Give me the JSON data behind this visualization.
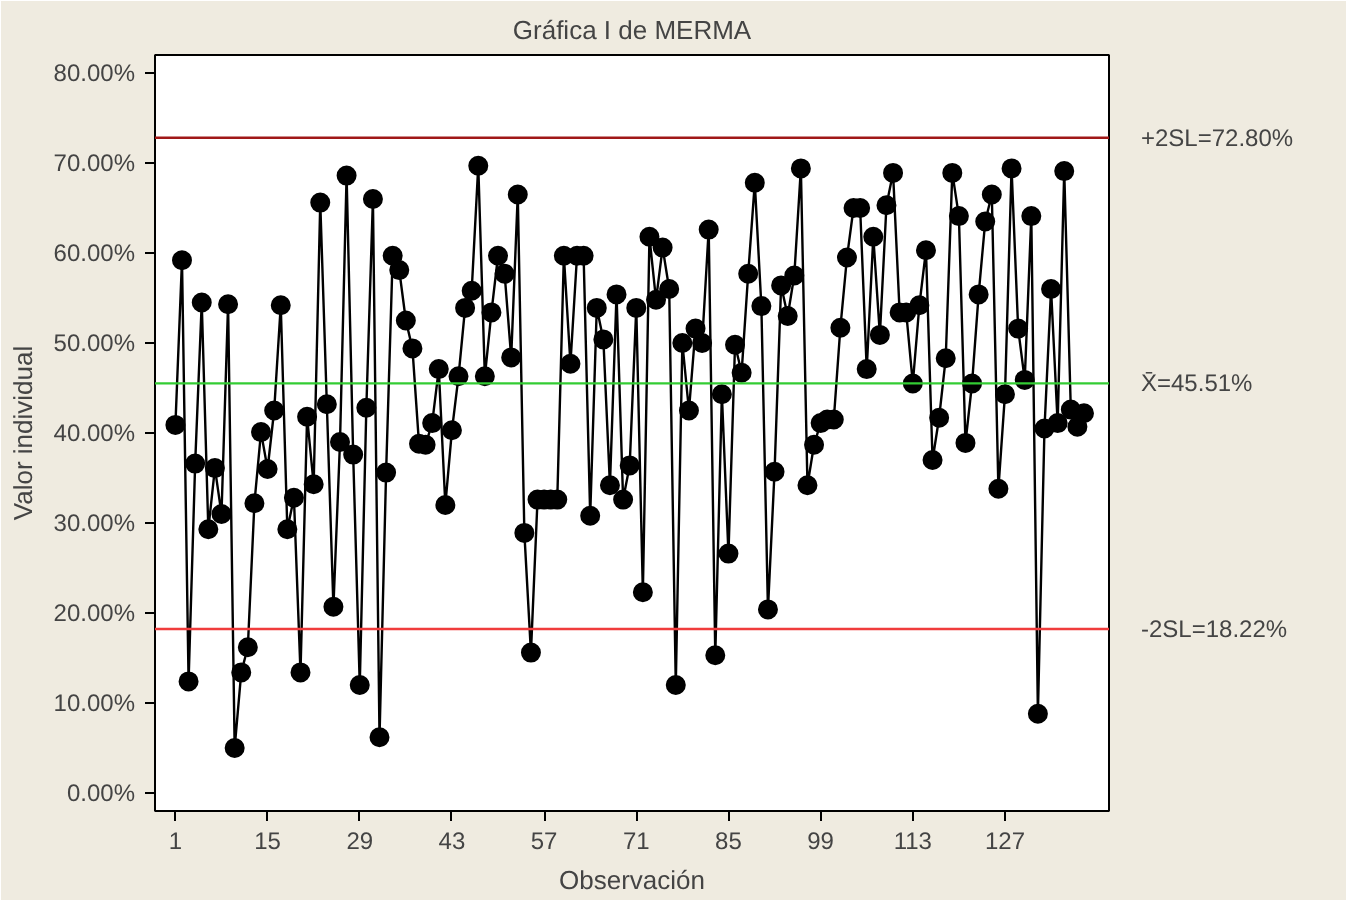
{
  "chart_data": {
    "type": "line",
    "title": "Gráfica I de MERMA",
    "xlabel": "Observación",
    "ylabel": "Valor individual",
    "x": [
      1,
      2,
      3,
      4,
      5,
      6,
      7,
      8,
      9,
      10,
      11,
      12,
      13,
      14,
      15,
      16,
      17,
      18,
      19,
      20,
      21,
      22,
      23,
      24,
      25,
      26,
      27,
      28,
      29,
      30,
      31,
      32,
      33,
      34,
      35,
      36,
      37,
      38,
      39,
      40,
      41,
      42,
      43,
      44,
      45,
      46,
      47,
      48,
      49,
      50,
      51,
      52,
      53,
      54,
      55,
      56,
      57,
      58,
      59,
      60,
      61,
      62,
      63,
      64,
      65,
      66,
      67,
      68,
      69,
      70,
      71,
      72,
      73,
      74,
      75,
      76,
      77,
      78,
      79,
      80,
      81,
      82,
      83,
      84,
      85,
      86,
      87,
      88,
      89,
      90,
      91,
      92,
      93,
      94,
      95,
      96,
      97,
      98,
      99,
      100,
      101,
      102,
      103,
      104,
      105,
      106,
      107,
      108,
      109,
      110,
      111,
      112,
      113,
      114,
      115,
      116,
      117,
      118,
      119,
      120,
      121,
      122,
      123,
      124,
      125,
      126,
      127,
      128,
      129,
      130,
      131,
      132,
      133,
      134,
      135,
      136,
      137,
      138,
      139
    ],
    "series": [
      {
        "color": "#000000",
        "values": [
          40.9,
          59.2,
          12.4,
          36.6,
          54.5,
          29.3,
          36.1,
          31.0,
          54.3,
          5.0,
          13.4,
          16.2,
          32.2,
          40.1,
          36.0,
          42.5,
          54.2,
          29.3,
          32.8,
          13.4,
          41.8,
          34.3,
          65.6,
          43.2,
          20.7,
          39.0,
          68.6,
          37.6,
          12.0,
          42.8,
          66.0,
          6.2,
          35.6,
          59.7,
          58.1,
          52.5,
          49.4,
          38.8,
          38.7,
          41.1,
          47.1,
          32.0,
          40.3,
          46.3,
          53.9,
          55.8,
          69.7,
          46.3,
          53.4,
          59.7,
          57.7,
          48.4,
          66.5,
          28.9,
          15.6,
          32.6,
          32.6,
          32.6,
          32.6,
          59.7,
          47.7,
          59.7,
          59.7,
          30.8,
          53.9,
          50.4,
          34.2,
          55.4,
          32.6,
          36.4,
          53.9,
          22.3,
          61.8,
          54.8,
          60.6,
          56.0,
          12.0,
          50.0,
          42.5,
          51.6,
          50.0,
          62.6,
          15.3,
          44.3,
          26.6,
          49.8,
          46.7,
          57.7,
          67.8,
          54.1,
          20.4,
          35.7,
          56.4,
          53.0,
          57.5,
          69.4,
          34.2,
          38.7,
          41.1,
          41.5,
          41.5,
          51.7,
          59.5,
          65.0,
          65.0,
          47.1,
          61.8,
          50.9,
          65.3,
          68.9,
          53.4,
          53.4,
          45.5,
          54.2,
          60.3,
          37.0,
          41.7,
          48.3,
          68.9,
          64.1,
          38.9,
          45.5,
          55.4,
          63.5,
          66.5,
          33.8,
          44.3,
          69.4,
          51.6,
          45.9,
          64.1,
          8.8,
          40.5,
          56.0,
          41.1,
          69.1,
          42.6,
          40.7,
          42.2
        ]
      }
    ],
    "xlim": [
      -2.1,
      142.8
    ],
    "ylim": [
      -2,
      82
    ],
    "xticks": [
      1,
      15,
      29,
      43,
      57,
      71,
      85,
      99,
      113,
      127
    ],
    "yticks": [
      {
        "value": 0,
        "label": "0.00%"
      },
      {
        "value": 10,
        "label": "10.00%"
      },
      {
        "value": 20,
        "label": "20.00%"
      },
      {
        "value": 30,
        "label": "30.00%"
      },
      {
        "value": 40,
        "label": "40.00%"
      },
      {
        "value": 50,
        "label": "50.00%"
      },
      {
        "value": 60,
        "label": "60.00%"
      },
      {
        "value": 70,
        "label": "70.00%"
      },
      {
        "value": 80,
        "label": "80.00%"
      }
    ],
    "ref_lines": [
      {
        "axis": "y",
        "value": 72.8,
        "label": "+2SL=72.80%",
        "color": "#a01818"
      },
      {
        "axis": "y",
        "value": 45.51,
        "label": "X̄=45.51%",
        "color": "#33cc33"
      },
      {
        "axis": "y",
        "value": 18.22,
        "label": "-2SL=18.22%",
        "color": "#f03c3c"
      }
    ],
    "marker": "circle",
    "line_style": "solid",
    "grid": false
  }
}
